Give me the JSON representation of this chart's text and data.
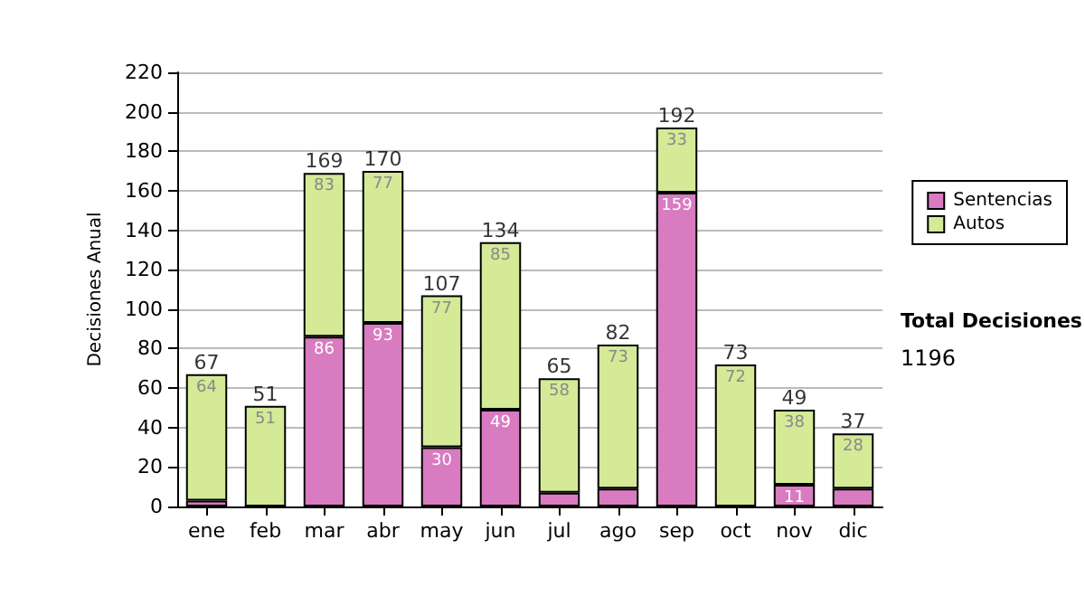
{
  "chart_data": {
    "type": "bar",
    "stacked": true,
    "ylabel": "Decisiones Anual",
    "categories": [
      "ene",
      "feb",
      "mar",
      "abr",
      "may",
      "jun",
      "jul",
      "ago",
      "sep",
      "oct",
      "nov",
      "dic"
    ],
    "series": [
      {
        "name": "Sentencias",
        "color": "#d97bc0",
        "values": [
          3,
          0,
          86,
          93,
          30,
          49,
          7,
          9,
          159,
          null,
          11,
          9
        ],
        "value_labels": [
          null,
          null,
          "86",
          "93",
          "30",
          "49",
          null,
          null,
          "159",
          null,
          "11",
          null
        ]
      },
      {
        "name": "Autos",
        "color": "#d4ea97",
        "values": [
          64,
          51,
          83,
          77,
          77,
          85,
          58,
          73,
          33,
          72,
          38,
          28
        ],
        "value_labels": [
          "64",
          "51",
          "83",
          "77",
          "77",
          "85",
          "58",
          "73",
          "33",
          "72",
          "38",
          "28"
        ]
      }
    ],
    "totals": [
      "67",
      "51",
      "169",
      "170",
      "107",
      "134",
      "65",
      "82",
      "192",
      "73",
      "49",
      "37"
    ],
    "ylim": [
      0,
      220
    ],
    "yticks": [
      0,
      20,
      40,
      60,
      80,
      100,
      120,
      140,
      160,
      180,
      200,
      220
    ],
    "grid": "y",
    "legend": "right",
    "annotations": [
      "Total Decisiones",
      "1196"
    ]
  }
}
